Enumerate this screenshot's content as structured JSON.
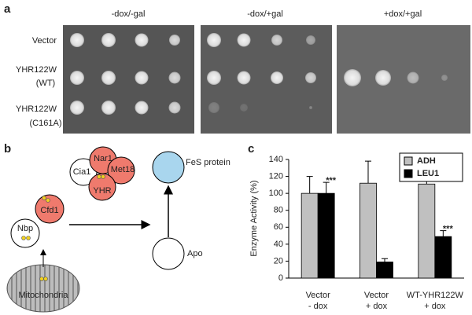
{
  "panel_a": {
    "label": "a",
    "columns": [
      "-dox/-gal",
      "-dox/+gal",
      "+dox/+gal"
    ],
    "rows": [
      [
        "Vector"
      ],
      [
        "YHR122W",
        "(WT)"
      ],
      [
        "YHR122W",
        "(C161A)"
      ]
    ]
  },
  "panel_b": {
    "label": "b",
    "nodes": [
      "Nbp",
      "Cfd1",
      "Cia1",
      "Nar1",
      "Met18",
      "YHR",
      "FeS protein",
      "Apo",
      "Mitochondria"
    ]
  },
  "panel_c_label": "c",
  "chart_data": {
    "type": "bar",
    "y_label": "Enzyme Activity (%)",
    "categories": [
      [
        "Vector",
        "- dox"
      ],
      [
        "Vector",
        "+ dox"
      ],
      [
        "WT-YHR122W",
        "+ dox"
      ]
    ],
    "series": [
      {
        "name": "ADH",
        "color": "#c0c0c0",
        "values": [
          100,
          112,
          111
        ],
        "errors": [
          20,
          26,
          19
        ],
        "annotations": [
          null,
          null,
          null
        ]
      },
      {
        "name": "LEU1",
        "color": "#000000",
        "values": [
          100,
          19,
          49
        ],
        "errors": [
          13,
          4,
          7
        ],
        "annotations": [
          "***",
          null,
          "***"
        ]
      }
    ],
    "ylim": [
      0,
      140
    ],
    "yticks": [
      0,
      20,
      40,
      60,
      80,
      100,
      120,
      140
    ],
    "legend": "top-right"
  }
}
